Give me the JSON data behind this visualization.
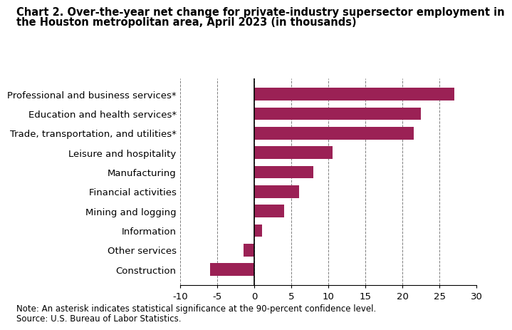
{
  "title_line1": "Chart 2. Over-the-year net change for private-industry supersector employment in",
  "title_line2": "the Houston metropolitan area, April 2023 (in thousands)",
  "categories": [
    "Construction",
    "Other services",
    "Information",
    "Mining and logging",
    "Financial activities",
    "Manufacturing",
    "Leisure and hospitality",
    "Trade, transportation, and utilities*",
    "Education and health services*",
    "Professional and business services*"
  ],
  "values": [
    -6.0,
    -1.5,
    1.0,
    4.0,
    6.0,
    8.0,
    10.5,
    21.5,
    22.5,
    27.0
  ],
  "bar_color": "#9b2155",
  "xlim": [
    -10,
    30
  ],
  "xticks": [
    -10,
    -5,
    0,
    5,
    10,
    15,
    20,
    25,
    30
  ],
  "note": "Note: An asterisk indicates statistical significance at the 90-percent confidence level.",
  "source": "Source: U.S. Bureau of Labor Statistics.",
  "title_fontsize": 10.5,
  "label_fontsize": 9.5,
  "tick_fontsize": 9.5,
  "note_fontsize": 8.5,
  "background_color": "#ffffff"
}
